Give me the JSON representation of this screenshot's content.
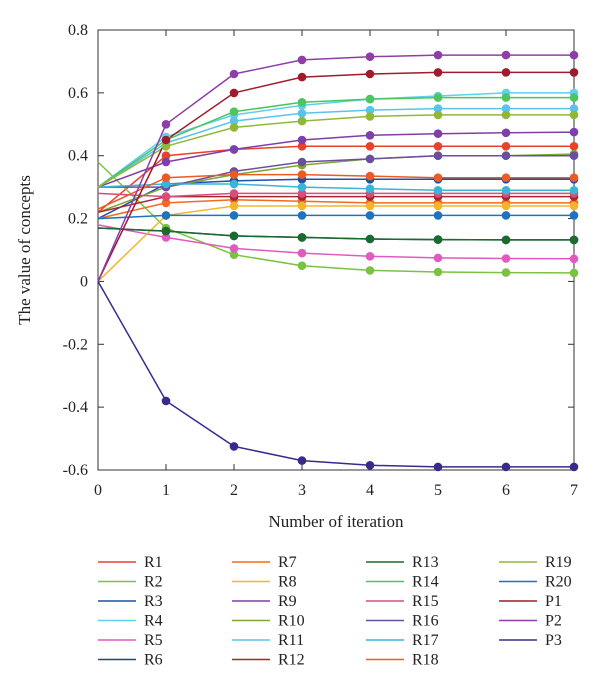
{
  "chart_data": {
    "type": "line",
    "title": "",
    "xlabel": "Number of iteration",
    "ylabel": "The value of concepts",
    "xlim": [
      0,
      7
    ],
    "ylim": [
      -0.6,
      0.8
    ],
    "x_ticks": [
      "0",
      "1",
      "2",
      "3",
      "4",
      "5",
      "6",
      "7"
    ],
    "y_ticks": [
      "-0.6",
      "-0.4",
      "-0.2",
      "0",
      "0.2",
      "0.4",
      "0.6",
      "0.8"
    ],
    "grid": false,
    "legend_position": "bottom",
    "x": [
      0,
      1,
      2,
      3,
      4,
      5,
      6,
      7
    ],
    "series": [
      {
        "name": "R1",
        "color": "#e8412c",
        "values": [
          0.22,
          0.4,
          0.42,
          0.43,
          0.43,
          0.43,
          0.43,
          0.43
        ]
      },
      {
        "name": "R2",
        "color": "#7cc242",
        "values": [
          0.38,
          0.17,
          0.085,
          0.05,
          0.035,
          0.03,
          0.028,
          0.027
        ]
      },
      {
        "name": "R3",
        "color": "#1f4fa8",
        "values": [
          0.2,
          0.31,
          0.32,
          0.325,
          0.325,
          0.325,
          0.325,
          0.325
        ]
      },
      {
        "name": "R4",
        "color": "#5fd0f0",
        "values": [
          0.3,
          0.46,
          0.53,
          0.56,
          0.58,
          0.59,
          0.6,
          0.6
        ]
      },
      {
        "name": "R5",
        "color": "#e05bbf",
        "values": [
          0.18,
          0.14,
          0.105,
          0.09,
          0.08,
          0.075,
          0.073,
          0.072
        ]
      },
      {
        "name": "R6",
        "color": "#17497a",
        "values": [
          0.17,
          0.16,
          0.145,
          0.14,
          0.135,
          0.133,
          0.132,
          0.132
        ]
      },
      {
        "name": "R7",
        "color": "#f26b21",
        "values": [
          0.2,
          0.25,
          0.26,
          0.255,
          0.25,
          0.25,
          0.25,
          0.25
        ]
      },
      {
        "name": "R8",
        "color": "#f4b52b",
        "values": [
          0.0,
          0.21,
          0.24,
          0.24,
          0.24,
          0.24,
          0.24,
          0.24
        ]
      },
      {
        "name": "R9",
        "color": "#7e3fa8",
        "values": [
          0.3,
          0.38,
          0.42,
          0.45,
          0.465,
          0.47,
          0.473,
          0.475
        ]
      },
      {
        "name": "R10",
        "color": "#7aa936",
        "values": [
          0.22,
          0.3,
          0.34,
          0.37,
          0.39,
          0.4,
          0.4,
          0.405
        ]
      },
      {
        "name": "R11",
        "color": "#5cc3e8",
        "values": [
          0.3,
          0.44,
          0.51,
          0.535,
          0.545,
          0.55,
          0.55,
          0.55
        ]
      },
      {
        "name": "R12",
        "color": "#a8262e",
        "values": [
          0.22,
          0.27,
          0.27,
          0.27,
          0.27,
          0.27,
          0.27,
          0.27
        ]
      },
      {
        "name": "R13",
        "color": "#1c6b2e",
        "values": [
          0.17,
          0.16,
          0.145,
          0.14,
          0.135,
          0.133,
          0.132,
          0.132
        ]
      },
      {
        "name": "R14",
        "color": "#4cc460",
        "values": [
          0.3,
          0.45,
          0.54,
          0.57,
          0.58,
          0.585,
          0.585,
          0.585
        ]
      },
      {
        "name": "R15",
        "color": "#d94d7a",
        "values": [
          0.28,
          0.27,
          0.28,
          0.28,
          0.28,
          0.28,
          0.28,
          0.28
        ]
      },
      {
        "name": "R16",
        "color": "#6a4fa0",
        "values": [
          0.3,
          0.3,
          0.35,
          0.38,
          0.39,
          0.4,
          0.4,
          0.4
        ]
      },
      {
        "name": "R17",
        "color": "#3ab4d8",
        "values": [
          0.3,
          0.31,
          0.31,
          0.3,
          0.295,
          0.29,
          0.29,
          0.29
        ]
      },
      {
        "name": "R18",
        "color": "#ee5a24",
        "values": [
          0.23,
          0.33,
          0.34,
          0.34,
          0.335,
          0.33,
          0.33,
          0.33
        ]
      },
      {
        "name": "R19",
        "color": "#8fb83a",
        "values": [
          0.3,
          0.43,
          0.49,
          0.51,
          0.525,
          0.53,
          0.53,
          0.53
        ]
      },
      {
        "name": "R20",
        "color": "#1e73be",
        "values": [
          0.2,
          0.21,
          0.21,
          0.21,
          0.21,
          0.21,
          0.21,
          0.21
        ]
      },
      {
        "name": "P1",
        "color": "#9e1c2c",
        "values": [
          0.0,
          0.45,
          0.6,
          0.65,
          0.66,
          0.665,
          0.665,
          0.665
        ]
      },
      {
        "name": "P2",
        "color": "#8e3ea8",
        "values": [
          0.0,
          0.5,
          0.66,
          0.705,
          0.715,
          0.72,
          0.72,
          0.72
        ]
      },
      {
        "name": "P3",
        "color": "#3b2a8c",
        "values": [
          0.0,
          -0.38,
          -0.525,
          -0.57,
          -0.585,
          -0.59,
          -0.59,
          -0.59
        ]
      }
    ]
  }
}
